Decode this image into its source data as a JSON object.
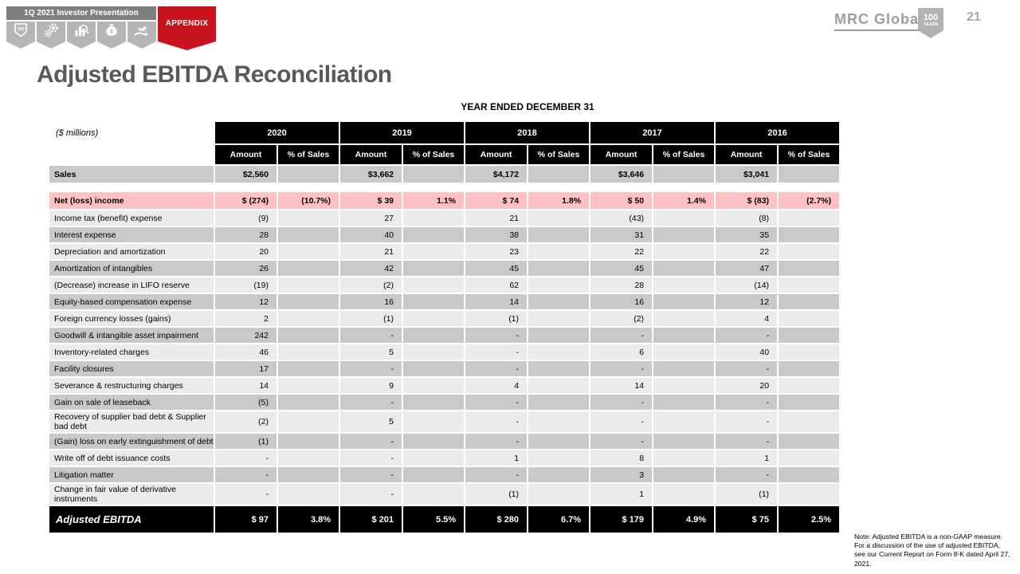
{
  "header": {
    "presentation_title": "1Q 2021 Investor Presentation",
    "appendix_label": "APPENDIX",
    "nav_icons": [
      {
        "name": "shield-100-icon",
        "glyph_text": "100"
      },
      {
        "name": "gears-icon"
      },
      {
        "name": "chart-magnifier-icon"
      },
      {
        "name": "money-bag-icon",
        "glyph_text": "$"
      },
      {
        "name": "hand-plant-icon"
      }
    ],
    "logo_text": "MRC Global",
    "badge": {
      "line1": "100",
      "line2": "YEARS"
    },
    "page_number": "21"
  },
  "slide": {
    "title": "Adjusted EBITDA Reconciliation",
    "table_caption": "YEAR ENDED DECEMBER 31",
    "units_label": "($ millions)",
    "note": "Note: Adjusted EBITDA is a non-GAAP measure. For a discussion of the use of adjusted EBITDA, see our Current Report on Form 8-K dated April 27, 2021."
  },
  "colors": {
    "accent_red": "#c9141e",
    "highlight_pink": "#ffc1c1",
    "row_light": "#ebebeb",
    "row_dark": "#c9c9c9",
    "header_black": "#000000",
    "title_gray": "#595959",
    "logo_gray": "#9d9d9d"
  },
  "table": {
    "years": [
      "2020",
      "2019",
      "2018",
      "2017",
      "2016"
    ],
    "subheaders": [
      "Amount",
      "% of Sales"
    ],
    "sales_row": {
      "label": "Sales",
      "values": [
        "$2,560",
        "",
        "$3,662",
        "",
        "$4,172",
        "",
        "$3,646",
        "",
        "$3,041",
        ""
      ]
    },
    "net_income_row": {
      "label": "Net (loss) income",
      "values": [
        "$ (274)",
        "(10.7%)",
        "$ 39",
        "1.1%",
        "$ 74",
        "1.8%",
        "$ 50",
        "1.4%",
        "$ (83)",
        "(2.7%)"
      ]
    },
    "rows": [
      {
        "label": "Income tax (benefit) expense",
        "values": [
          "(9)",
          "",
          "27",
          "",
          "21",
          "",
          "(43)",
          "",
          "(8)",
          ""
        ]
      },
      {
        "label": "Interest expense",
        "values": [
          "28",
          "",
          "40",
          "",
          "38",
          "",
          "31",
          "",
          "35",
          ""
        ]
      },
      {
        "label": "Depreciation and amortization",
        "values": [
          "20",
          "",
          "21",
          "",
          "23",
          "",
          "22",
          "",
          "22",
          ""
        ]
      },
      {
        "label": "Amortization of intangibles",
        "values": [
          "26",
          "",
          "42",
          "",
          "45",
          "",
          "45",
          "",
          "47",
          ""
        ]
      },
      {
        "label": "(Decrease) increase in LIFO reserve",
        "values": [
          "(19)",
          "",
          "(2)",
          "",
          "62",
          "",
          "28",
          "",
          "(14)",
          ""
        ]
      },
      {
        "label": "Equity-based compensation expense",
        "values": [
          "12",
          "",
          "16",
          "",
          "14",
          "",
          "16",
          "",
          "12",
          ""
        ]
      },
      {
        "label": "Foreign currency losses (gains)",
        "values": [
          "2",
          "",
          "(1)",
          "",
          "(1)",
          "",
          "(2)",
          "",
          "4",
          ""
        ]
      },
      {
        "label": "Goodwill & intangible asset impairment",
        "values": [
          "242",
          "",
          "-",
          "",
          "-",
          "",
          "-",
          "",
          "-",
          ""
        ]
      },
      {
        "label": "Inventory-related charges",
        "values": [
          "46",
          "",
          "5",
          "",
          "-",
          "",
          "6",
          "",
          "40",
          ""
        ]
      },
      {
        "label": "Facility closures",
        "values": [
          "17",
          "",
          "-",
          "",
          "-",
          "",
          "-",
          "",
          "-",
          ""
        ]
      },
      {
        "label": "Severance & restructuring charges",
        "values": [
          "14",
          "",
          "9",
          "",
          "4",
          "",
          "14",
          "",
          "20",
          ""
        ]
      },
      {
        "label": "Gain on sale of leaseback",
        "values": [
          "(5)",
          "",
          "-",
          "",
          "-",
          "",
          "-",
          "",
          "-",
          ""
        ]
      },
      {
        "label": "Recovery of supplier bad debt & Supplier bad debt",
        "wrap": true,
        "values": [
          "(2)",
          "",
          "5",
          "",
          "-",
          "",
          "-",
          "",
          "-",
          ""
        ]
      },
      {
        "label": "(Gain) loss on early extinguishment of debt",
        "values": [
          "(1)",
          "",
          "-",
          "",
          "-",
          "",
          "-",
          "",
          "-",
          ""
        ]
      },
      {
        "label": "Write off of debt issuance costs",
        "values": [
          "-",
          "",
          "-",
          "",
          "1",
          "",
          "8",
          "",
          "1",
          ""
        ]
      },
      {
        "label": "Litigation matter",
        "values": [
          "-",
          "",
          "-",
          "",
          "-",
          "",
          "3",
          "",
          "-",
          ""
        ]
      },
      {
        "label": "Change in fair value of derivative instruments",
        "wrap": true,
        "values": [
          "-",
          "",
          "-",
          "",
          "(1)",
          "",
          "1",
          "",
          "(1)",
          ""
        ]
      }
    ],
    "total_row": {
      "label": "Adjusted EBITDA",
      "values": [
        "$ 97",
        "3.8%",
        "$ 201",
        "5.5%",
        "$ 280",
        "6.7%",
        "$ 179",
        "4.9%",
        "$ 75",
        "2.5%"
      ]
    }
  }
}
